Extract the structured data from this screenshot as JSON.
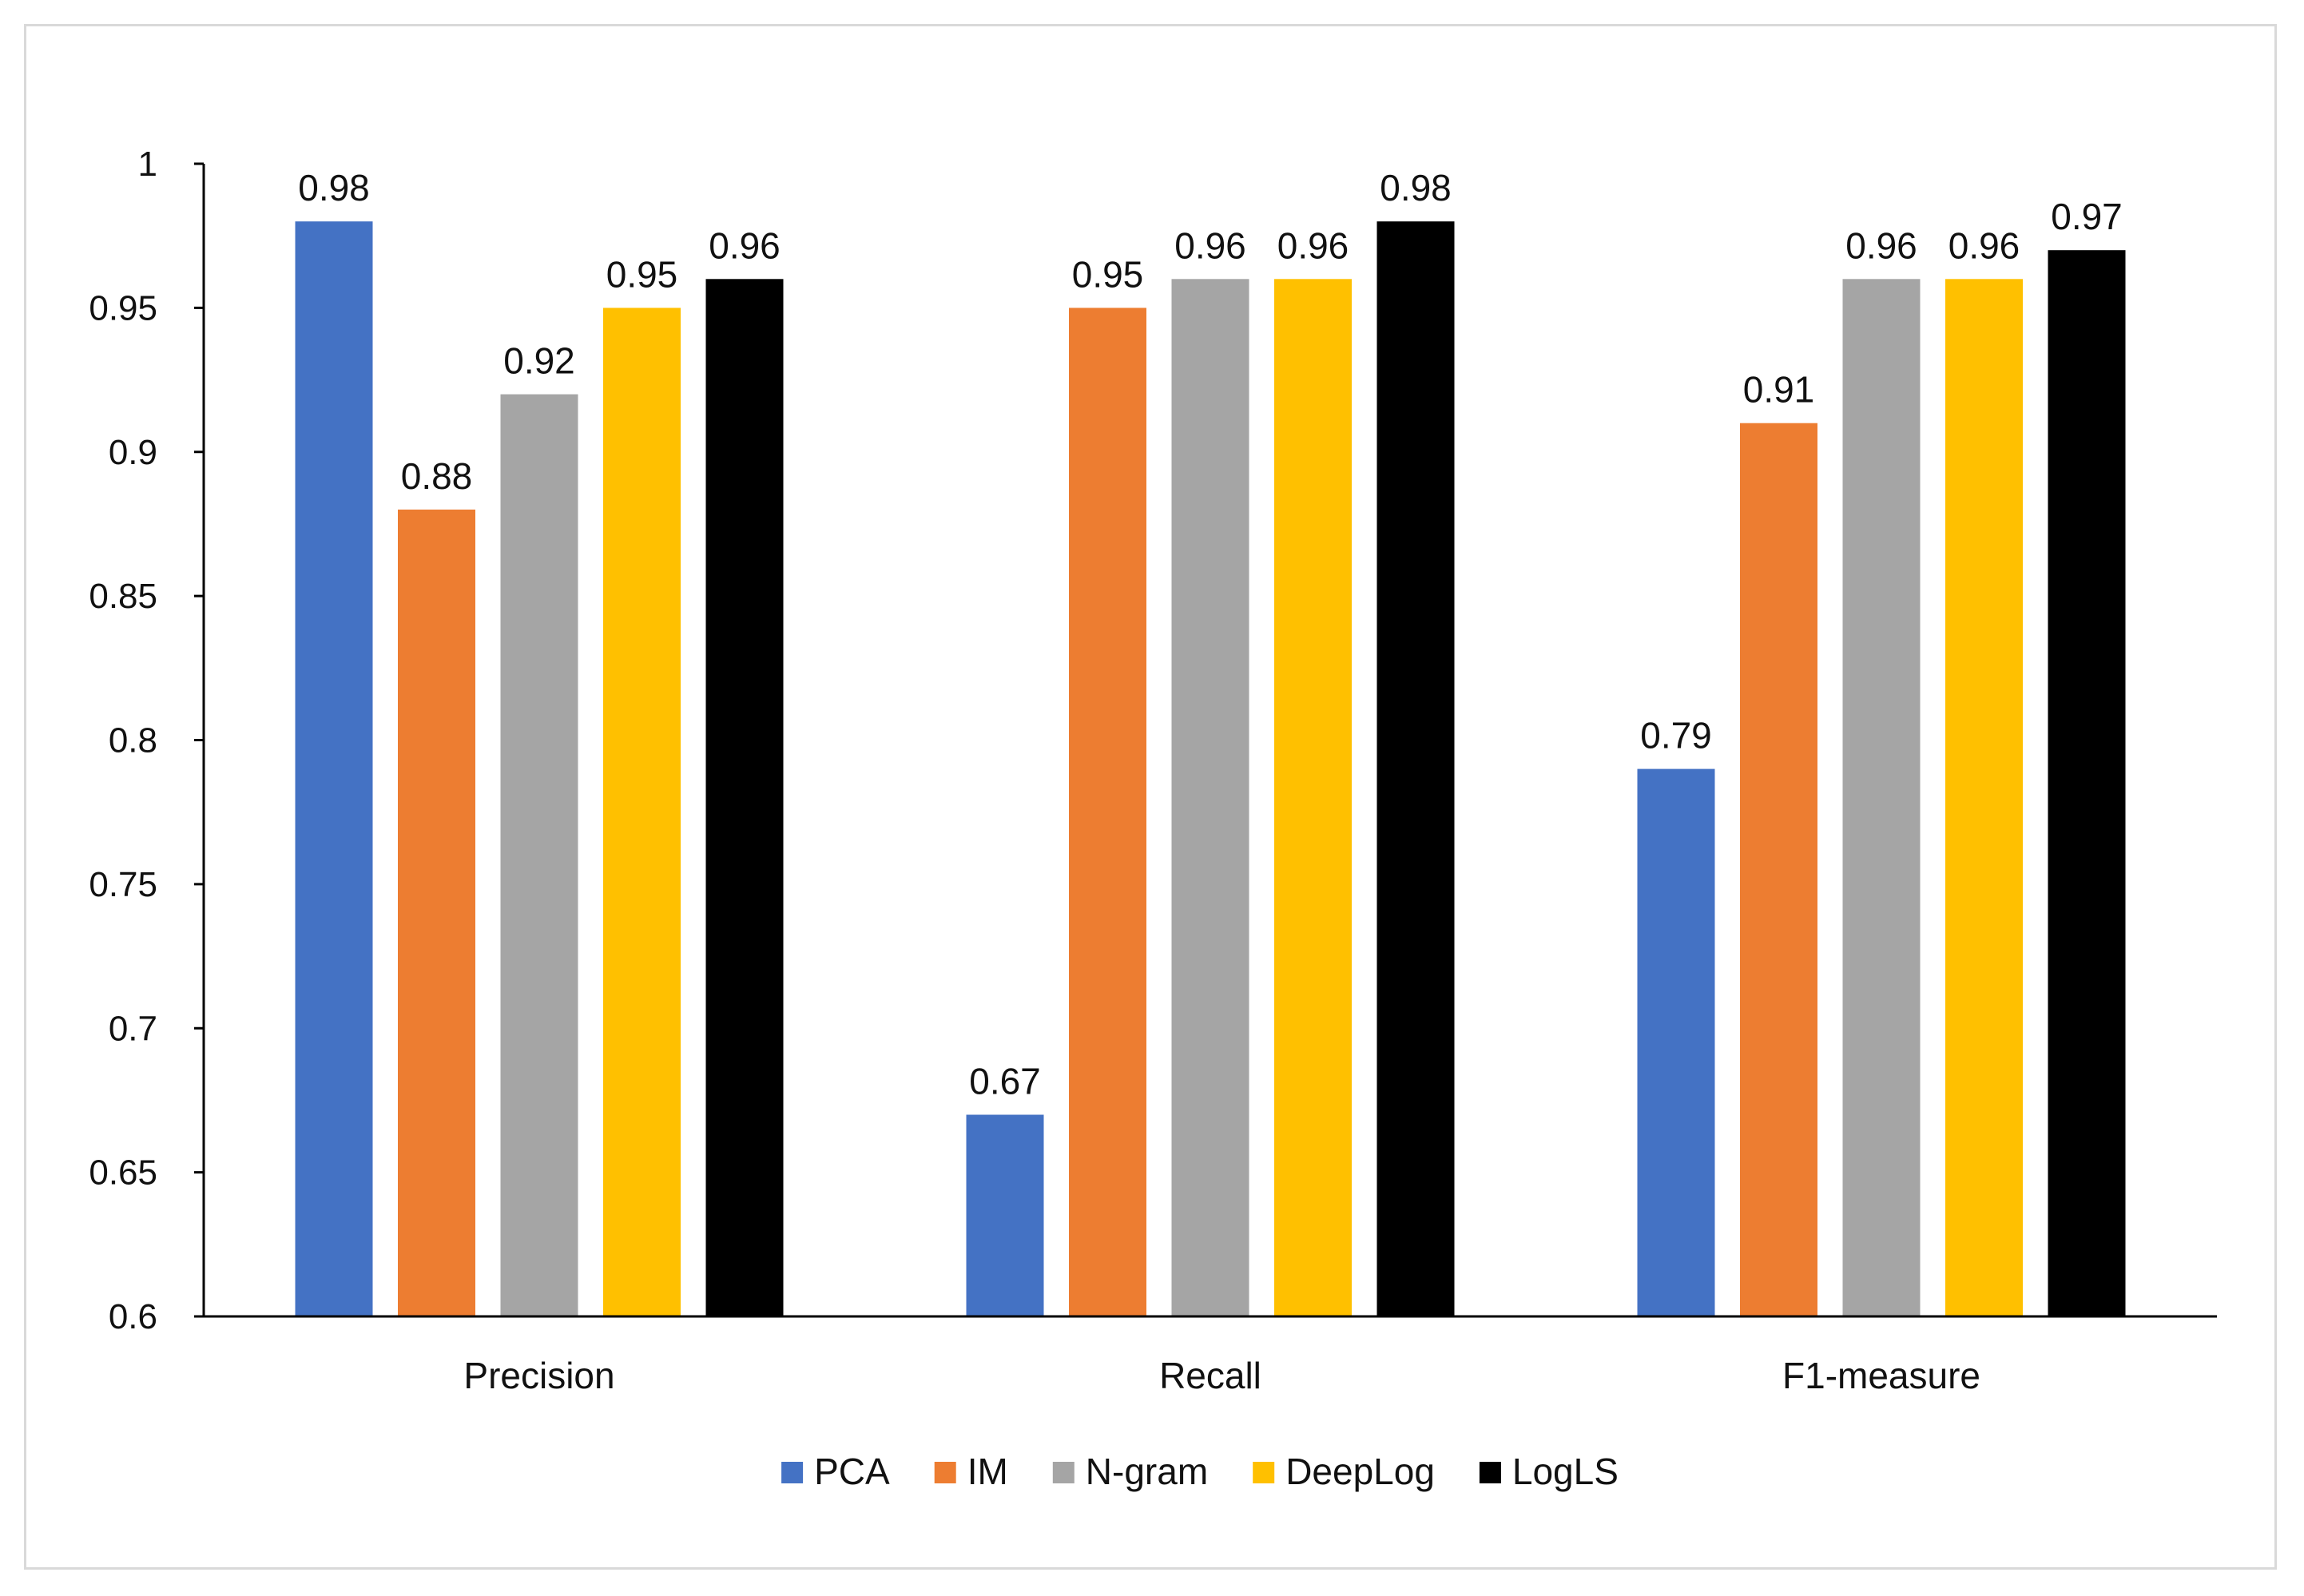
{
  "chart_data": {
    "type": "bar",
    "title": "",
    "xlabel": "",
    "ylabel": "",
    "categories": [
      "Precision",
      "Recall",
      "F1-measure"
    ],
    "ylim": [
      0.6,
      1.0
    ],
    "yticks": [
      "0.6",
      "0.65",
      "0.7",
      "0.75",
      "0.8",
      "0.85",
      "0.9",
      "0.95",
      "1"
    ],
    "grid": false,
    "legend_position": "bottom",
    "series": [
      {
        "name": "PCA",
        "color": "#4472C4",
        "values": [
          0.98,
          0.67,
          0.79
        ],
        "labels": [
          "0.98",
          "0.67",
          "0.79"
        ]
      },
      {
        "name": "IM",
        "color": "#ED7D31",
        "values": [
          0.88,
          0.95,
          0.91
        ],
        "labels": [
          "0.88",
          "0.95",
          "0.91"
        ]
      },
      {
        "name": "N-gram",
        "color": "#A5A5A5",
        "values": [
          0.92,
          0.96,
          0.96
        ],
        "labels": [
          "0.92",
          "0.96",
          "0.96"
        ]
      },
      {
        "name": "DeepLog",
        "color": "#FFC000",
        "values": [
          0.95,
          0.96,
          0.96
        ],
        "labels": [
          "0.95",
          "0.96",
          "0.96"
        ]
      },
      {
        "name": "LogLS",
        "color": "#000000",
        "values": [
          0.96,
          0.98,
          0.97
        ],
        "labels": [
          "0.96",
          "0.98",
          "0.97"
        ]
      }
    ]
  }
}
